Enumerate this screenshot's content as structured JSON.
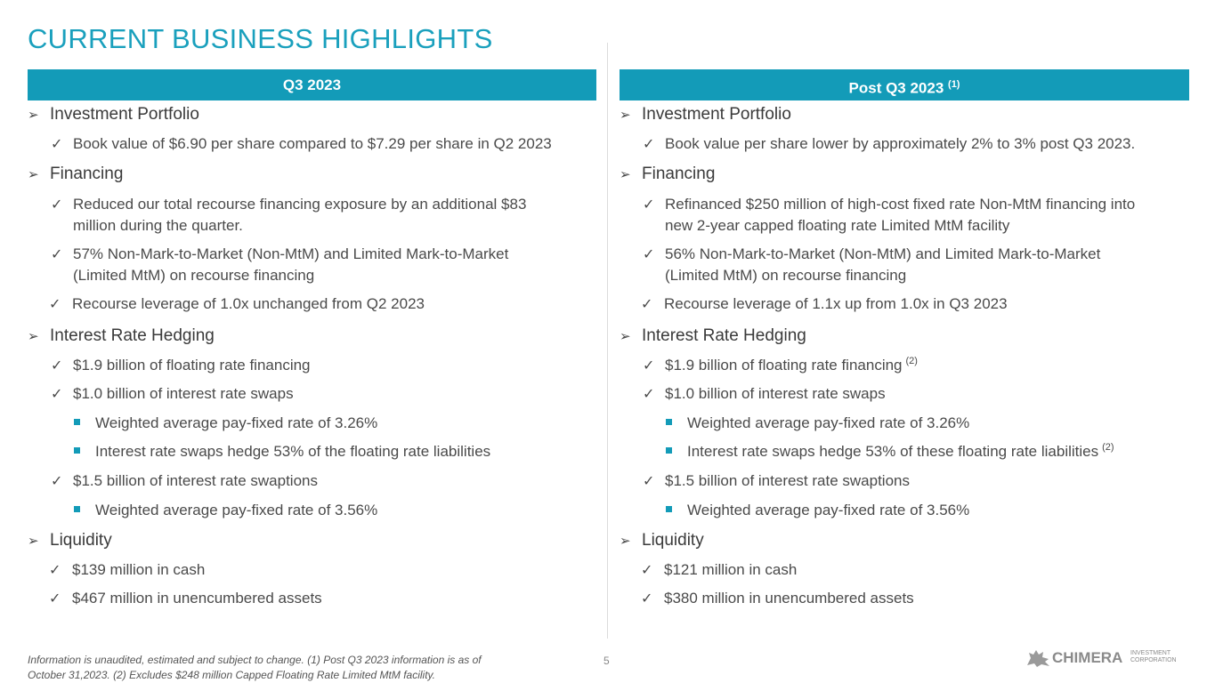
{
  "title": "CURRENT BUSINESS HIGHLIGHTS",
  "left": {
    "header": "Q3 2023",
    "s1": "Investment Portfolio",
    "b1": "Book value of $6.90 per share compared to $7.29 per share in Q2 2023",
    "s2": "Financing",
    "b2a": "Reduced our total recourse financing exposure by an additional $83",
    "b2b": "million during the quarter.",
    "b3a": "57% Non-Mark-to-Market (Non-MtM) and Limited Mark-to-Market",
    "b3b": "(Limited MtM) on recourse financing",
    "b4": "Recourse leverage of 1.0x unchanged from Q2 2023",
    "s3": "Interest Rate Hedging",
    "b5": "$1.9 billion of floating rate financing",
    "b6": "$1.0 billion of interest rate swaps",
    "b6a": "Weighted average pay-fixed rate of 3.26%",
    "b6b": "Interest rate swaps hedge 53% of the floating rate liabilities",
    "b7": "$1.5 billion of interest rate swaptions",
    "b7a": "Weighted average pay-fixed rate of 3.56%",
    "s4": "Liquidity",
    "b8": "$139 million in cash",
    "b9": "$467 million in unencumbered assets"
  },
  "right": {
    "header": "Post Q3 2023",
    "header_ref": "(1)",
    "s1": "Investment Portfolio",
    "b1": "Book value per share lower by approximately 2% to 3% post Q3 2023.",
    "s2": "Financing",
    "b2a": "Refinanced $250 million of high-cost fixed rate Non-MtM financing into",
    "b2b": "new 2-year capped floating rate Limited MtM facility",
    "b3a": "56% Non-Mark-to-Market (Non-MtM) and Limited Mark-to-Market",
    "b3b": "(Limited MtM) on recourse financing",
    "b4": "Recourse leverage of 1.1x up from 1.0x in Q3 2023",
    "s3": "Interest Rate Hedging",
    "b5": "$1.9 billion of floating rate financing",
    "b5_ref": "(2)",
    "b6": "$1.0 billion of interest rate swaps",
    "b6a": "Weighted average pay-fixed rate of 3.26%",
    "b6b": "Interest rate swaps hedge 53% of these floating rate liabilities",
    "b6b_ref": "(2)",
    "b7": "$1.5 billion of interest rate swaptions",
    "b7a": "Weighted average pay-fixed rate of 3.56%",
    "s4": "Liquidity",
    "b8": "$121 million in cash",
    "b9": "$380 million in unencumbered assets"
  },
  "footnote": {
    "line1": "Information is unaudited, estimated and subject to change. (1) Post Q3 2023 information is as of",
    "line2": "October 31,2023. (2) Excludes $248 million Capped Floating Rate Limited MtM facility."
  },
  "page_number": "5",
  "logo": {
    "name": "CHIMERA",
    "sub1": "INVESTMENT",
    "sub2": "CORPORATION"
  },
  "colors": {
    "accent": "#139bb8",
    "title": "#1aa0bd"
  },
  "icons": {
    "section": "arrow-right-icon",
    "item": "check-icon",
    "subitem": "square-bullet-icon"
  }
}
